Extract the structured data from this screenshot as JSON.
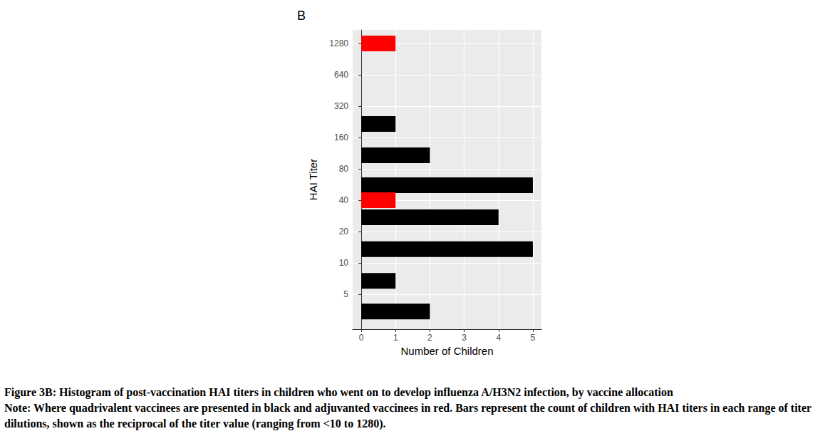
{
  "chart_data": {
    "type": "bar",
    "orientation": "horizontal",
    "title": "B",
    "x_label": "Number of Children",
    "y_label": "HAI Titer",
    "log": "y",
    "grid": true,
    "series": [
      {
        "color": "#000000",
        "y": [
          3.4,
          6.7,
          13.5,
          27.4,
          55.7,
          108,
          216
        ],
        "values": [
          2,
          1,
          5,
          4,
          5,
          2,
          1
        ]
      },
      {
        "color": "#ff0000",
        "y": [
          40,
          1280
        ],
        "values": [
          1,
          1
        ]
      }
    ],
    "xlim": [
      -0.25,
      5.25
    ],
    "xticks": [
      0,
      1,
      2,
      3,
      4,
      5
    ],
    "ylim": [
      2.3,
      1730
    ],
    "yticks": [
      5,
      10,
      20,
      40,
      80,
      160,
      320,
      640,
      1280
    ],
    "caption": "Figure 3B: Histogram of post-vaccination HAI titers in children who went on to develop influenza A/H3N2 infection, by vaccine allocation",
    "note": "Note: Where quadrivalent vaccinees are presented in black and adjuvanted vaccinees in red. Bars represent the count of children with HAI titers in each range of titer dilutions, shown as the reciprocal of the titer value (ranging from <10 to 1280)."
  }
}
